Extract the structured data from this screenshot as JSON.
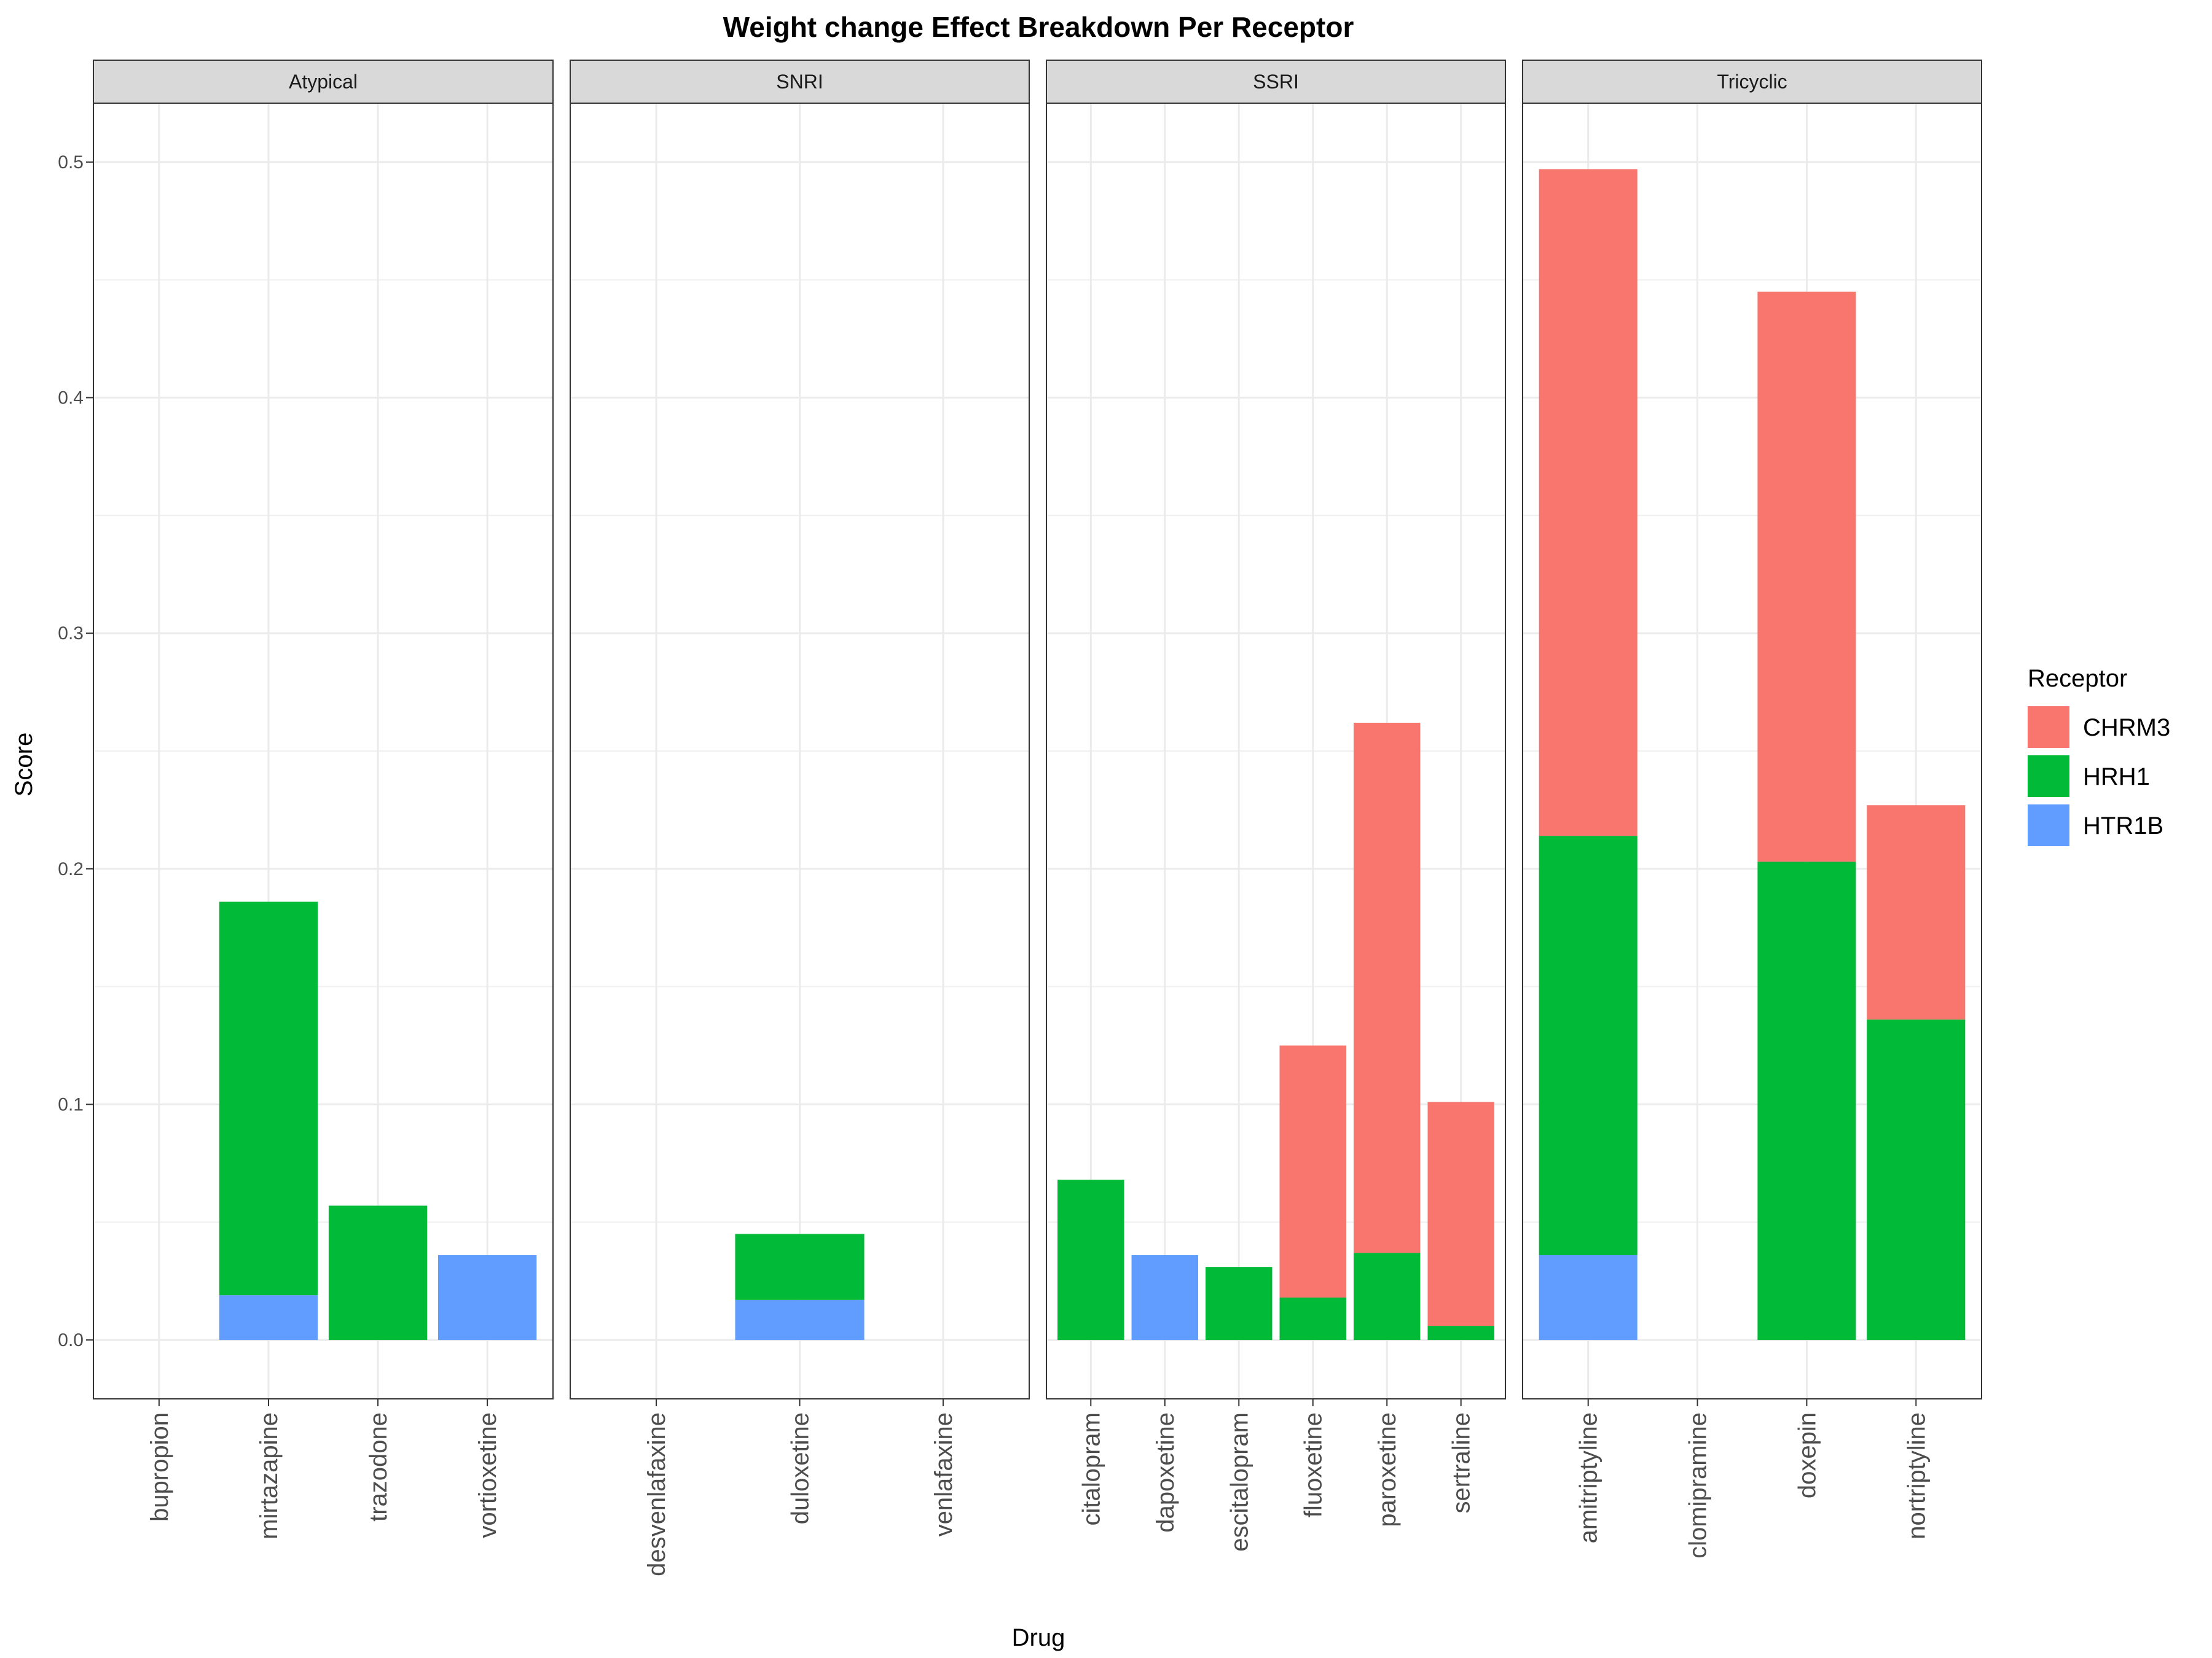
{
  "chart_data": {
    "type": "bar",
    "stacked": true,
    "title": "Weight change Effect Breakdown Per Receptor",
    "xlabel": "Drug",
    "ylabel": "Score",
    "ylim": [
      -0.025,
      0.525
    ],
    "yticks": [
      0.0,
      0.1,
      0.2,
      0.3,
      0.4,
      0.5
    ],
    "ytick_labels": [
      "0.0",
      "0.1",
      "0.2",
      "0.3",
      "0.4",
      "0.5"
    ],
    "grid": true,
    "legend": {
      "title": "Receptor",
      "position": "right",
      "entries": [
        "CHRM3",
        "HRH1",
        "HTR1B"
      ]
    },
    "colors": {
      "CHRM3": "#F8766D",
      "HRH1": "#00BA38",
      "HTR1B": "#619CFF"
    },
    "stack_order": [
      "HTR1B",
      "HRH1",
      "CHRM3"
    ],
    "panels": [
      {
        "name": "Atypical",
        "drugs": [
          {
            "drug": "bupropion",
            "CHRM3": 0,
            "HRH1": 0,
            "HTR1B": 0
          },
          {
            "drug": "mirtazapine",
            "CHRM3": 0,
            "HRH1": 0.167,
            "HTR1B": 0.019
          },
          {
            "drug": "trazodone",
            "CHRM3": 0,
            "HRH1": 0.057,
            "HTR1B": 0
          },
          {
            "drug": "vortioxetine",
            "CHRM3": 0,
            "HRH1": 0,
            "HTR1B": 0.036
          }
        ]
      },
      {
        "name": "SNRI",
        "drugs": [
          {
            "drug": "desvenlafaxine",
            "CHRM3": 0,
            "HRH1": 0,
            "HTR1B": 0
          },
          {
            "drug": "duloxetine",
            "CHRM3": 0,
            "HRH1": 0.028,
            "HTR1B": 0.017
          },
          {
            "drug": "venlafaxine",
            "CHRM3": 0,
            "HRH1": 0,
            "HTR1B": 0
          }
        ]
      },
      {
        "name": "SSRI",
        "drugs": [
          {
            "drug": "citalopram",
            "CHRM3": 0,
            "HRH1": 0.068,
            "HTR1B": 0
          },
          {
            "drug": "dapoxetine",
            "CHRM3": 0,
            "HRH1": 0,
            "HTR1B": 0.036
          },
          {
            "drug": "escitalopram",
            "CHRM3": 0,
            "HRH1": 0.031,
            "HTR1B": 0
          },
          {
            "drug": "fluoxetine",
            "CHRM3": 0.107,
            "HRH1": 0.018,
            "HTR1B": 0
          },
          {
            "drug": "paroxetine",
            "CHRM3": 0.225,
            "HRH1": 0.037,
            "HTR1B": 0
          },
          {
            "drug": "sertraline",
            "CHRM3": 0.095,
            "HRH1": 0.006,
            "HTR1B": 0
          }
        ]
      },
      {
        "name": "Tricyclic",
        "drugs": [
          {
            "drug": "amitriptyline",
            "CHRM3": 0.283,
            "HRH1": 0.178,
            "HTR1B": 0.036
          },
          {
            "drug": "clomipramine",
            "CHRM3": 0,
            "HRH1": 0,
            "HTR1B": 0
          },
          {
            "drug": "doxepin",
            "CHRM3": 0.242,
            "HRH1": 0.203,
            "HTR1B": 0
          },
          {
            "drug": "nortriptyline",
            "CHRM3": 0.091,
            "HRH1": 0.136,
            "HTR1B": 0
          }
        ]
      }
    ]
  }
}
